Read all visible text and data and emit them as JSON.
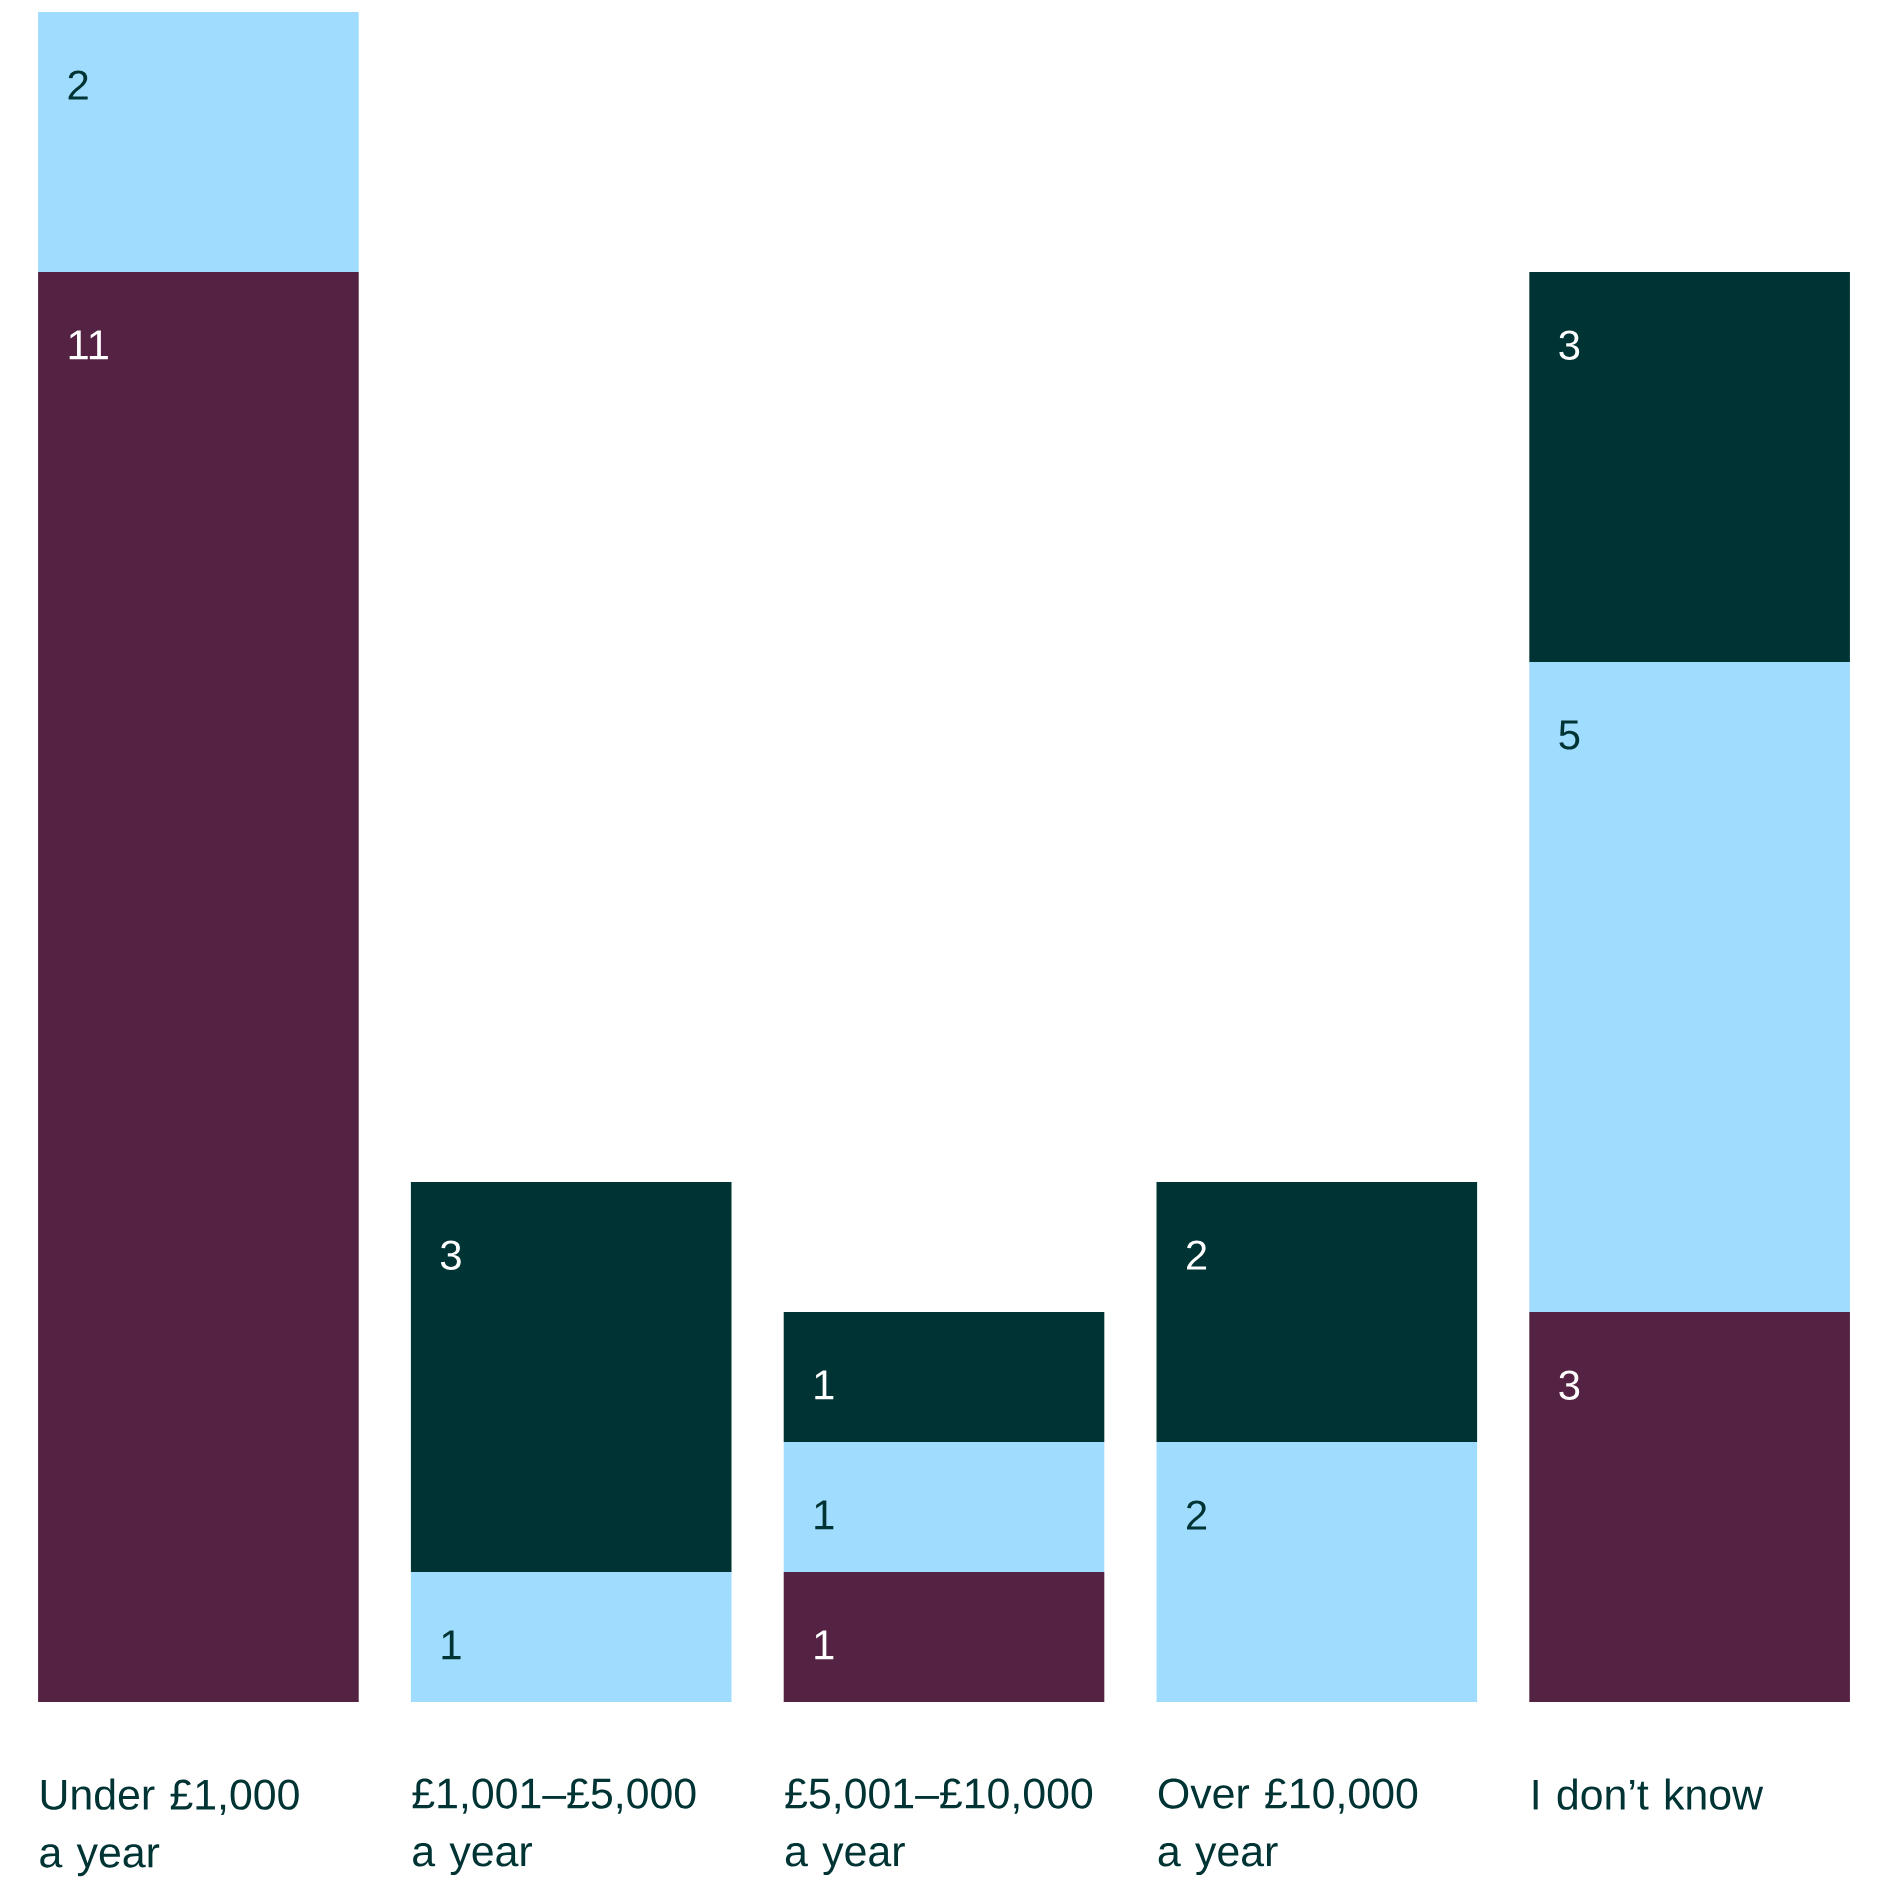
{
  "chart_data": {
    "type": "bar",
    "stacked": true,
    "data_labels": true,
    "categories": [
      "Under £1,000 a year",
      "£1,001–£5,000 a year",
      "£5,001–£10,000 a year",
      "Over £10,000 a year",
      "I don’t know"
    ],
    "series": [
      {
        "color": "#542242",
        "values": [
          11,
          null,
          1,
          null,
          3
        ]
      },
      {
        "color": "#a0dcfe",
        "values": [
          2,
          1,
          1,
          2,
          5
        ]
      },
      {
        "color": "#003333",
        "values": [
          null,
          3,
          1,
          2,
          3
        ]
      }
    ]
  }
}
